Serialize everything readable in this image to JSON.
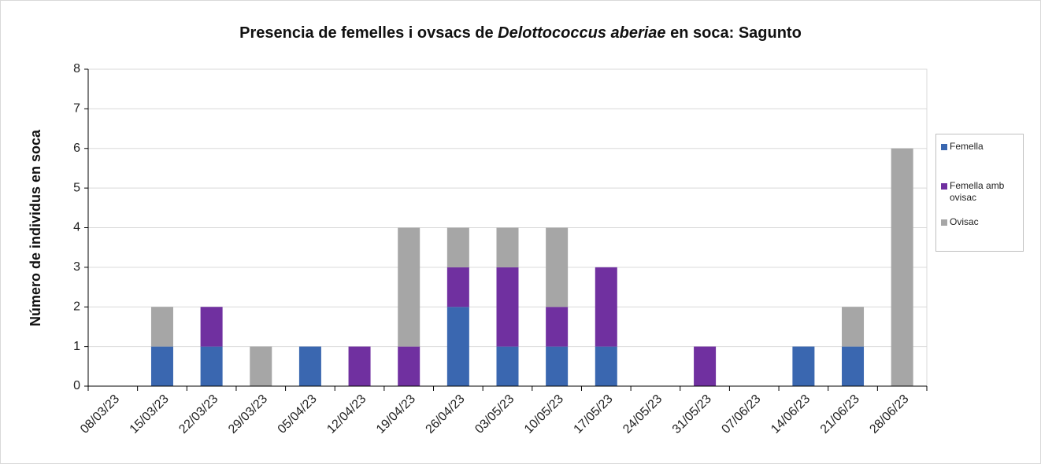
{
  "chart_data": {
    "type": "stacked_bar",
    "title": [
      "Presencia de femelles i ovsacs de ",
      "Delottococcus aberiae",
      " en soca: Sagunto"
    ],
    "y_label": "Número de individus en soca",
    "categories": [
      "08/03/23",
      "15/03/23",
      "22/03/23",
      "29/03/23",
      "05/04/23",
      "12/04/23",
      "19/04/23",
      "26/04/23",
      "03/05/23",
      "10/05/23",
      "17/05/23",
      "24/05/23",
      "31/05/23",
      "07/06/23",
      "14/06/23",
      "21/06/23",
      "28/06/23"
    ],
    "series": [
      {
        "name": "Femella",
        "color": "#3a67b0",
        "values": [
          0,
          1,
          1,
          0,
          1,
          0,
          0,
          2,
          1,
          1,
          1,
          0,
          0,
          0,
          1,
          1,
          0
        ]
      },
      {
        "name": "Femella amb ovisac",
        "color": "#7030a0",
        "values": [
          0,
          0,
          1,
          0,
          0,
          1,
          1,
          1,
          2,
          1,
          2,
          0,
          1,
          0,
          0,
          0,
          0
        ]
      },
      {
        "name": "Ovisac",
        "color": "#a6a6a6",
        "values": [
          0,
          1,
          0,
          1,
          0,
          0,
          3,
          1,
          1,
          2,
          0,
          0,
          0,
          0,
          0,
          1,
          6
        ]
      }
    ],
    "ylim": [
      0,
      8
    ],
    "yticks": [
      0,
      1,
      2,
      3,
      4,
      5,
      6,
      7,
      8
    ],
    "grid": true,
    "legend": "right"
  }
}
